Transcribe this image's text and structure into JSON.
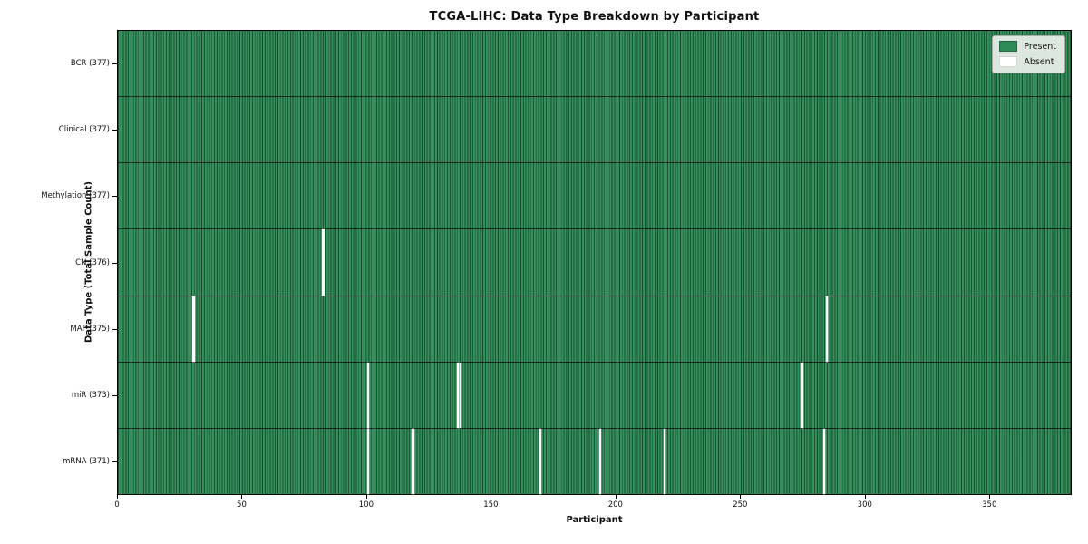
{
  "window": {
    "title": "TCGA-LIHC: Data Type Breakdown by Participant"
  },
  "chart_data": {
    "type": "heatmap",
    "title": "TCGA-LIHC: Data Type Breakdown by Participant",
    "xlabel": "Participant",
    "ylabel": "Data Type (Total Sample Count)",
    "x_ticks": [
      0,
      50,
      100,
      150,
      200,
      250,
      300,
      350
    ],
    "x_axis_max": 383,
    "total_participants": 377,
    "grid": false,
    "cell_present_color": "#2e8b57",
    "cell_absent_color": "#ffffff",
    "legend": {
      "position": "upper right",
      "entries": [
        {
          "label": "Present",
          "color": "#2e8b57"
        },
        {
          "label": "Absent",
          "color": "#ffffff"
        }
      ]
    },
    "rows": [
      {
        "label": "BCR (377)",
        "data_type": "BCR",
        "present_count": 377,
        "absent_count": 0,
        "absent_participants": []
      },
      {
        "label": "Clinical (377)",
        "data_type": "Clinical",
        "present_count": 377,
        "absent_count": 0,
        "absent_participants": []
      },
      {
        "label": "Methylation (377)",
        "data_type": "Methylation",
        "present_count": 377,
        "absent_count": 0,
        "absent_participants": []
      },
      {
        "label": "CN (376)",
        "data_type": "CN",
        "present_count": 376,
        "absent_count": 1,
        "absent_participants": [
          82
        ]
      },
      {
        "label": "MAF (375)",
        "data_type": "MAF",
        "present_count": 375,
        "absent_count": 2,
        "absent_participants": [
          30,
          284
        ]
      },
      {
        "label": "miR (373)",
        "data_type": "miR",
        "present_count": 373,
        "absent_count": 4,
        "absent_participants": [
          100,
          136,
          137,
          274
        ]
      },
      {
        "label": "mRNA (371)",
        "data_type": "mRNA",
        "present_count": 371,
        "absent_count": 6,
        "absent_participants": [
          100,
          118,
          169,
          193,
          219,
          283
        ]
      }
    ]
  }
}
